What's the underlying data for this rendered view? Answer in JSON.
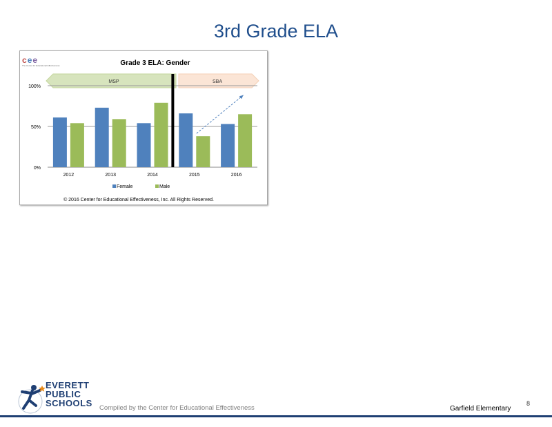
{
  "slide": {
    "title": "3rd Grade ELA",
    "page_number": "8",
    "footer_compiled": "Compiled by the Center for Educational Effectiveness",
    "footer_school": "Garfield Elementary",
    "district_logo_lines": [
      "EVERETT",
      "PUBLIC",
      "SCHOOLS"
    ]
  },
  "cee_logo": {
    "letters": "cee",
    "subtitle": "The Center for Educational Effectiveness"
  },
  "chart_data": {
    "type": "bar",
    "title": "Grade 3 ELA: Gender",
    "categories": [
      "2012",
      "2013",
      "2014",
      "2015",
      "2016"
    ],
    "series": [
      {
        "name": "Female",
        "values": [
          61,
          73,
          54,
          66,
          53
        ],
        "color": "#4f81bd"
      },
      {
        "name": "Male",
        "values": [
          54,
          59,
          79,
          38,
          65
        ],
        "color": "#9bbb59"
      }
    ],
    "ylim": [
      0,
      100
    ],
    "yticks": [
      {
        "value": 0,
        "label": "0%"
      },
      {
        "value": 50,
        "label": "50%"
      },
      {
        "value": 100,
        "label": "100%"
      }
    ],
    "grid": true,
    "legend_position": "bottom",
    "annotations": {
      "msp_label": "MSP",
      "sba_label": "SBA",
      "copyright": "© 2016 Center for Educational Effectiveness, Inc. All Rights Reserved."
    }
  }
}
